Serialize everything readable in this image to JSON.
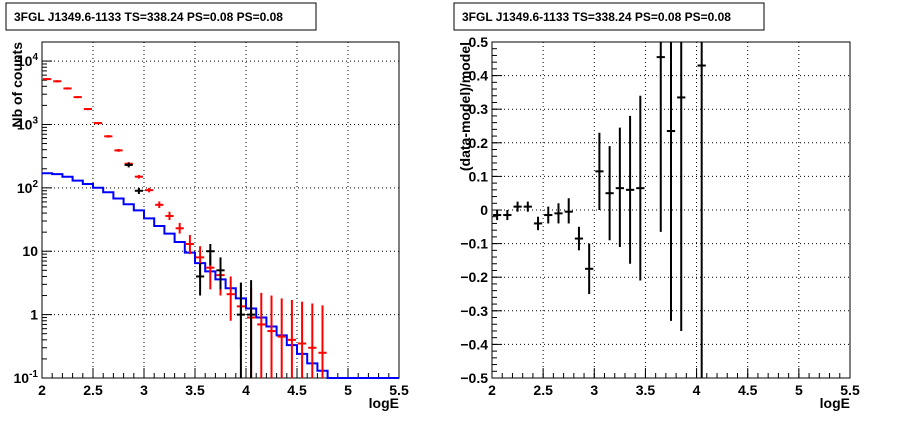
{
  "chart_data": [
    {
      "type": "line",
      "title": "3FGL J1349.6-1133 TS=338.24 PS=0.08 PS=0.08",
      "xlabel": "logE",
      "ylabel": "Nb of counts",
      "xlim": [
        2,
        5.5
      ],
      "ylim": [
        0.1,
        20000
      ],
      "log_y": true,
      "grid": true,
      "x_ticks": [
        "2",
        "2.5",
        "3",
        "3.5",
        "4",
        "4.5",
        "5",
        "5.5"
      ],
      "y_ticks": [
        {
          "value": 0.1,
          "label": "10",
          "exp": "-1"
        },
        {
          "value": 1,
          "label": "1",
          "exp": ""
        },
        {
          "value": 10,
          "label": "10",
          "exp": ""
        },
        {
          "value": 100,
          "label": "10",
          "exp": "2"
        },
        {
          "value": 1000,
          "label": "10",
          "exp": "3"
        },
        {
          "value": 10000,
          "label": "10",
          "exp": "4"
        }
      ],
      "series": [
        {
          "color": "#0000ff",
          "style": "step",
          "bin_edges": [
            2.0,
            2.1,
            2.2,
            2.3,
            2.4,
            2.5,
            2.6,
            2.7,
            2.8,
            2.9,
            3.0,
            3.1,
            3.2,
            3.3,
            3.4,
            3.5,
            3.6,
            3.7,
            3.8,
            3.9,
            4.0,
            4.1,
            4.2,
            4.3,
            4.4,
            4.5,
            4.6,
            4.7,
            4.8,
            4.9,
            5.0,
            5.1,
            5.2,
            5.3,
            5.4,
            5.5
          ],
          "values": [
            170,
            165,
            150,
            130,
            115,
            100,
            85,
            68,
            55,
            44,
            33,
            25,
            19,
            14,
            9.5,
            6.5,
            4.8,
            3.6,
            2.6,
            1.8,
            1.25,
            0.9,
            0.65,
            0.47,
            0.33,
            0.24,
            0.17,
            0.13,
            0.1,
            0.1,
            0.1,
            0.1,
            0.1,
            0.1,
            0.1
          ]
        },
        {
          "color": "#ff0000",
          "style": "errorbar",
          "x": [
            2.05,
            2.15,
            2.25,
            2.35,
            2.45,
            2.55,
            2.65,
            2.75,
            2.85,
            2.95,
            3.05,
            3.15,
            3.25,
            3.35,
            3.45,
            3.55,
            3.65,
            3.75,
            3.85,
            3.95,
            4.05,
            4.15,
            4.25,
            4.35,
            4.45,
            4.55,
            4.65,
            4.75
          ],
          "y": [
            5200,
            4800,
            3700,
            2700,
            1750,
            1050,
            650,
            390,
            240,
            150,
            92,
            54,
            36,
            23,
            13,
            8,
            5.5,
            4.2,
            2.1,
            1.35,
            0.9,
            0.7,
            0.55,
            0.45,
            0.4,
            0.35,
            0.3,
            0.25
          ],
          "y_lo": [
            5000,
            4600,
            3550,
            2600,
            1680,
            1010,
            620,
            370,
            225,
            140,
            85,
            48,
            31,
            19,
            9,
            4,
            2.5,
            2,
            0.8,
            0.3,
            0.1,
            0.1,
            0.1,
            0.1,
            0.1,
            0.1,
            0.1,
            0.1
          ],
          "y_hi": [
            5400,
            5000,
            3850,
            2800,
            1820,
            1090,
            680,
            410,
            255,
            160,
            100,
            61,
            42,
            28,
            18,
            12,
            9,
            7.5,
            4,
            3.2,
            2.6,
            2.2,
            2,
            1.8,
            1.7,
            1.6,
            1.5,
            1.4
          ]
        },
        {
          "color": "#000000",
          "style": "errorbar",
          "x": [
            2.85,
            2.95,
            3.55,
            3.65,
            3.75,
            3.95,
            4.05
          ],
          "y": [
            230,
            90,
            4,
            10,
            5,
            1,
            1
          ],
          "y_lo": [
            210,
            80,
            2,
            6,
            2.5,
            0.1,
            0.1
          ],
          "y_hi": [
            250,
            100,
            6.5,
            13,
            8,
            3.2,
            3.5
          ]
        }
      ]
    },
    {
      "type": "scatter",
      "title": "3FGL J1349.6-1133 TS=338.24 PS=0.08 PS=0.08",
      "xlabel": "logE",
      "ylabel": "(data-model)/model",
      "xlim": [
        2,
        5.5
      ],
      "ylim": [
        -0.5,
        0.5
      ],
      "grid": true,
      "x_ticks": [
        "2",
        "2.5",
        "3",
        "3.5",
        "4",
        "4.5",
        "5",
        "5.5"
      ],
      "y_ticks": [
        {
          "value": 0.5,
          "label": "0.5"
        },
        {
          "value": 0.4,
          "label": "0.4"
        },
        {
          "value": 0.3,
          "label": "0.3"
        },
        {
          "value": 0.2,
          "label": "0.2"
        },
        {
          "value": 0.1,
          "label": "0.1"
        },
        {
          "value": 0,
          "label": "0"
        },
        {
          "value": -0.1,
          "label": "−0.1"
        },
        {
          "value": -0.2,
          "label": "−0.2"
        },
        {
          "value": -0.3,
          "label": "−0.3"
        },
        {
          "value": -0.4,
          "label": "−0.4"
        },
        {
          "value": -0.5,
          "label": "−0.5"
        }
      ],
      "series": [
        {
          "color": "#000000",
          "style": "errorbar",
          "x": [
            2.05,
            2.15,
            2.25,
            2.35,
            2.45,
            2.55,
            2.65,
            2.75,
            2.85,
            2.95,
            3.05,
            3.15,
            3.25,
            3.35,
            3.45,
            3.65,
            3.75,
            3.85,
            4.05
          ],
          "y": [
            -0.015,
            -0.015,
            0.01,
            0.01,
            -0.04,
            -0.015,
            -0.01,
            -0.005,
            -0.085,
            -0.175,
            0.115,
            0.05,
            0.065,
            0.06,
            0.065,
            0.455,
            0.235,
            0.335,
            0.43
          ],
          "y_lo": [
            -0.03,
            -0.03,
            -0.005,
            -0.005,
            -0.06,
            -0.04,
            -0.04,
            -0.04,
            -0.12,
            -0.25,
            0.0,
            -0.09,
            -0.11,
            -0.16,
            -0.21,
            -0.065,
            -0.33,
            -0.36,
            -0.5
          ],
          "y_hi": [
            0.0,
            0.0,
            0.025,
            0.025,
            -0.02,
            0.01,
            0.02,
            0.035,
            -0.05,
            -0.1,
            0.23,
            0.19,
            0.245,
            0.28,
            0.34,
            0.5,
            0.5,
            0.5,
            0.5
          ]
        }
      ]
    }
  ]
}
